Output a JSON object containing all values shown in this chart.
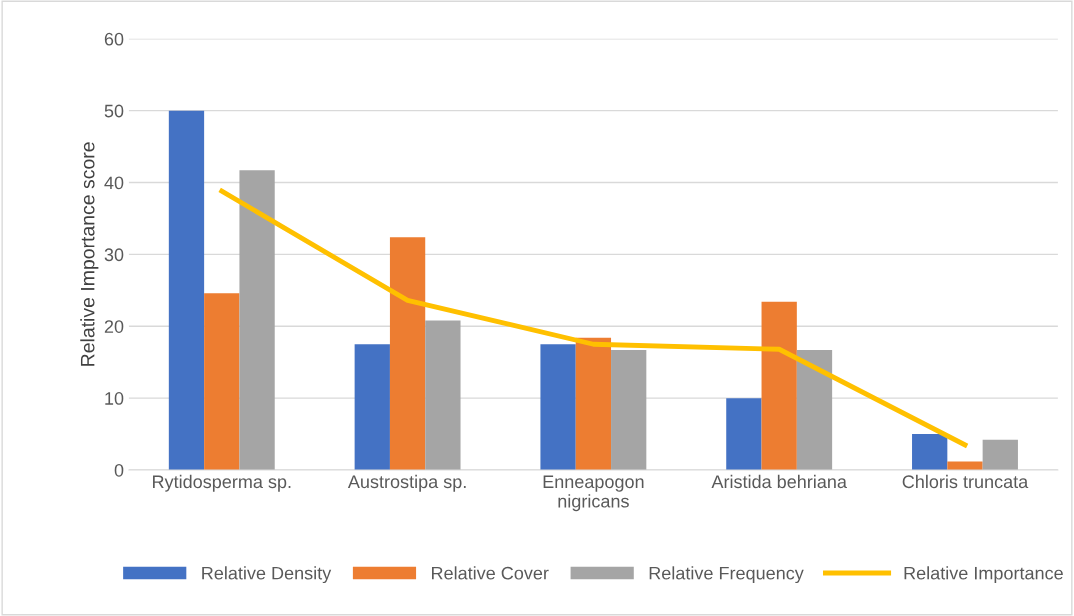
{
  "chart_data": {
    "type": "bar",
    "ylabel": "Relative Importance score",
    "categories": [
      "Rytidosperma sp.",
      "Austrostipa sp.",
      "Enneapogon nigricans",
      "Aristida behriana",
      "Chloris truncata"
    ],
    "series": [
      {
        "name": "Relative Density",
        "color": "#4472c4",
        "values": [
          50,
          17.5,
          17.5,
          10,
          5
        ]
      },
      {
        "name": "Relative Cover",
        "color": "#ed7d31",
        "values": [
          24.6,
          32.4,
          18.4,
          23.4,
          1.2
        ]
      },
      {
        "name": "Relative Frequency",
        "color": "#a5a5a5",
        "values": [
          41.7,
          20.8,
          16.7,
          16.7,
          4.2
        ]
      },
      {
        "name": "Relative Importance",
        "color": "#ffc000",
        "type": "line",
        "values": [
          38.8,
          23.6,
          17.5,
          16.8,
          3.5
        ]
      }
    ],
    "ylim": [
      0,
      60
    ],
    "yticks": [
      0,
      10,
      20,
      30,
      40,
      50,
      60
    ],
    "grid": "y",
    "legend": "bottom",
    "marker": "none",
    "line_style": "solid"
  }
}
